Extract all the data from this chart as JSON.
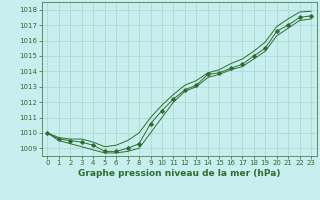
{
  "title": "Graphe pression niveau de la mer (hPa)",
  "bg_color": "#c8eef0",
  "grid_color": "#aaddcc",
  "line_color": "#2d6e2d",
  "xlim": [
    -0.5,
    23.5
  ],
  "ylim": [
    1008.5,
    1018.5
  ],
  "yticks": [
    1009,
    1010,
    1011,
    1012,
    1013,
    1014,
    1015,
    1016,
    1017,
    1018
  ],
  "xticks": [
    0,
    1,
    2,
    3,
    4,
    5,
    6,
    7,
    8,
    9,
    10,
    11,
    12,
    13,
    14,
    15,
    16,
    17,
    18,
    19,
    20,
    21,
    22,
    23
  ],
  "series": {
    "main": [
      1010.0,
      1009.6,
      1009.5,
      1009.4,
      1009.2,
      1008.8,
      1008.8,
      1009.0,
      1009.3,
      1010.6,
      1011.45,
      1012.2,
      1012.8,
      1013.1,
      1013.8,
      1013.9,
      1014.2,
      1014.45,
      1015.0,
      1015.5,
      1016.6,
      1017.0,
      1017.5,
      1017.6
    ],
    "upper": [
      1010.0,
      1009.7,
      1009.6,
      1009.6,
      1009.4,
      1009.1,
      1009.2,
      1009.5,
      1010.0,
      1011.0,
      1011.8,
      1012.5,
      1013.1,
      1013.4,
      1013.9,
      1014.1,
      1014.5,
      1014.8,
      1015.3,
      1015.9,
      1016.9,
      1017.4,
      1017.85,
      1017.9
    ],
    "lower": [
      1010.0,
      1009.5,
      1009.3,
      1009.1,
      1008.9,
      1008.7,
      1008.7,
      1008.8,
      1009.0,
      1010.0,
      1011.0,
      1012.0,
      1012.7,
      1013.0,
      1013.6,
      1013.8,
      1014.1,
      1014.3,
      1014.8,
      1015.3,
      1016.3,
      1016.8,
      1017.3,
      1017.4
    ]
  },
  "title_fontsize": 6.0,
  "tick_fontsize": 5.0,
  "xlabel_fontsize": 6.5
}
